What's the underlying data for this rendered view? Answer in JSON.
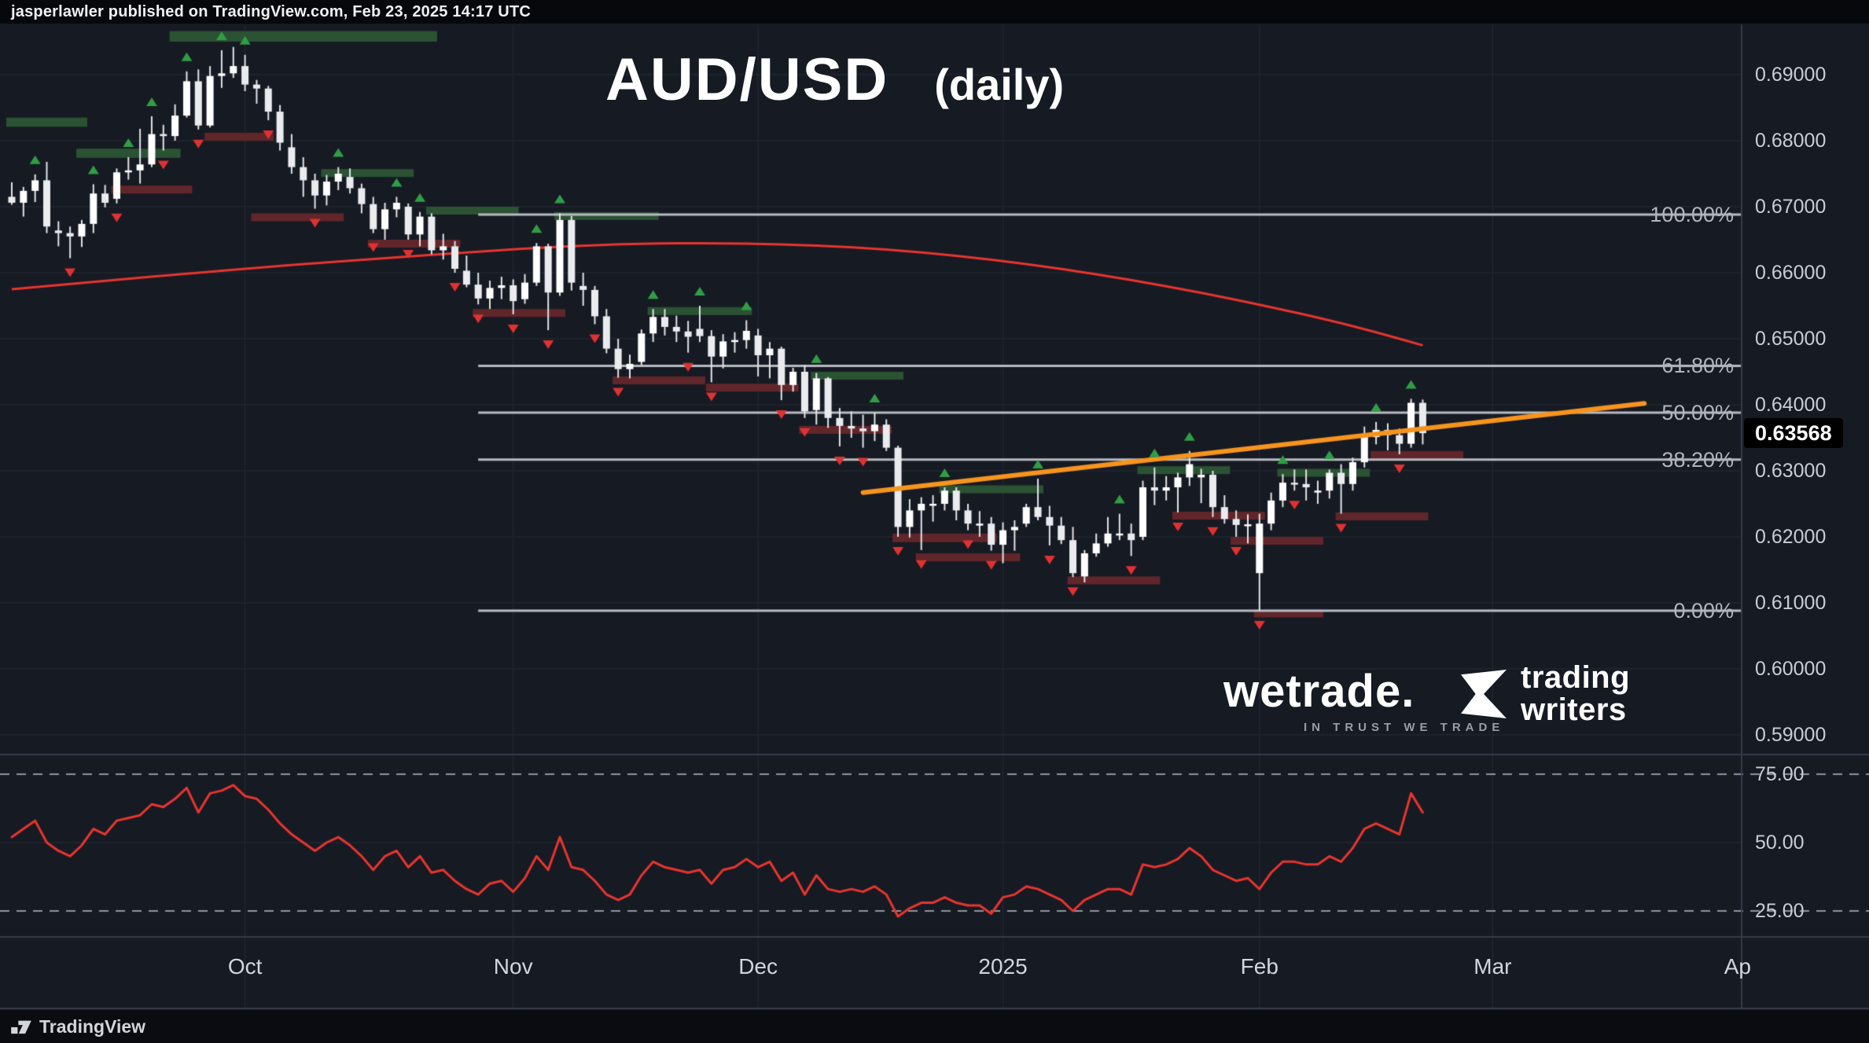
{
  "header": {
    "attribution": "jasperlawler published on TradingView.com, Feb 23, 2025 14:17 UTC"
  },
  "title": {
    "symbol": "AUD/USD",
    "timeframe": "(daily)"
  },
  "price_scale": {
    "last_price_label": "0.63568",
    "ticks": [
      {
        "label": "0.69000",
        "value": 0.69
      },
      {
        "label": "0.68000",
        "value": 0.68
      },
      {
        "label": "0.67000",
        "value": 0.67
      },
      {
        "label": "0.66000",
        "value": 0.66
      },
      {
        "label": "0.65000",
        "value": 0.65
      },
      {
        "label": "0.64000",
        "value": 0.64
      },
      {
        "label": "0.63000",
        "value": 0.63
      },
      {
        "label": "0.62000",
        "value": 0.62
      },
      {
        "label": "0.61000",
        "value": 0.61
      },
      {
        "label": "0.60000",
        "value": 0.6
      },
      {
        "label": "0.59000",
        "value": 0.59
      }
    ]
  },
  "rsi_scale": {
    "ticks": [
      {
        "label": "75.00",
        "value": 75
      },
      {
        "label": "50.00",
        "value": 50
      },
      {
        "label": "25.00",
        "value": 25
      }
    ]
  },
  "time_scale": {
    "ticks": [
      {
        "label": "Oct",
        "index": 20
      },
      {
        "label": "Nov",
        "index": 43
      },
      {
        "label": "Dec",
        "index": 64
      },
      {
        "label": "2025",
        "index": 85
      },
      {
        "label": "Feb",
        "index": 107
      },
      {
        "label": "Mar",
        "index": 127
      },
      {
        "label": "Ap",
        "index": 148
      }
    ]
  },
  "watermarks": {
    "wetrade": {
      "name": "wetrade.",
      "tagline": "IN TRUST WE TRADE"
    },
    "trading_writers": {
      "line1": "trading",
      "line2": "writers"
    }
  },
  "footer": {
    "brand": "TradingView"
  },
  "colors": {
    "background": "#161a23",
    "topbar_bg": "#07080c",
    "grid": "#212633",
    "separator": "#363b49",
    "candle_up": "#ffffff",
    "candle_down": "#e9ebef",
    "wick": "#e2e4e9",
    "ma_line": "#e8352e",
    "rsi_line": "#e8352e",
    "trendline": "#f7941d",
    "fib_line": "#b7bac1",
    "fib_label": "#b2b5be",
    "zone_green": "#2b5233",
    "zone_red": "#61262a",
    "arrow_up": "#2f9e44",
    "arrow_down": "#e03131",
    "dashed": "#9094a0",
    "axis_text": "#c9ccd3",
    "price_tag_bg": "#000000",
    "price_tag_text": "#ffffff"
  },
  "chart_data": {
    "type": "candlestick",
    "title": "AUD/USD",
    "interval": "daily",
    "last_price": 0.63568,
    "price_axis": {
      "min": 0.588,
      "max": 0.698,
      "tick_step": 0.01,
      "grid": true
    },
    "rsi_axis": {
      "min": 15,
      "max": 85,
      "overbought": 75,
      "midline": 50,
      "oversold": 25
    },
    "candles_ohlc": [
      [
        0.6715,
        0.6737,
        0.6703,
        0.6706
      ],
      [
        0.6706,
        0.673,
        0.6685,
        0.6724
      ],
      [
        0.6724,
        0.6749,
        0.6707,
        0.674
      ],
      [
        0.674,
        0.6768,
        0.666,
        0.667
      ],
      [
        0.6664,
        0.6678,
        0.664,
        0.666
      ],
      [
        0.666,
        0.667,
        0.6622,
        0.6655
      ],
      [
        0.6655,
        0.668,
        0.6639,
        0.6674
      ],
      [
        0.6674,
        0.6734,
        0.666,
        0.672
      ],
      [
        0.672,
        0.6733,
        0.6699,
        0.6706
      ],
      [
        0.6712,
        0.6758,
        0.6705,
        0.6752
      ],
      [
        0.6752,
        0.6775,
        0.6741,
        0.6755
      ],
      [
        0.6755,
        0.6818,
        0.6735,
        0.6764
      ],
      [
        0.6764,
        0.6837,
        0.676,
        0.681
      ],
      [
        0.681,
        0.6824,
        0.6785,
        0.6807
      ],
      [
        0.6807,
        0.6855,
        0.68,
        0.6838
      ],
      [
        0.6838,
        0.6905,
        0.6835,
        0.689
      ],
      [
        0.689,
        0.6908,
        0.6817,
        0.6823
      ],
      [
        0.6823,
        0.6913,
        0.682,
        0.6898
      ],
      [
        0.6898,
        0.6937,
        0.688,
        0.6902
      ],
      [
        0.6902,
        0.6942,
        0.6895,
        0.6913
      ],
      [
        0.6913,
        0.693,
        0.6875,
        0.6885
      ],
      [
        0.6885,
        0.6892,
        0.6856,
        0.6879
      ],
      [
        0.6879,
        0.6883,
        0.6831,
        0.6844
      ],
      [
        0.6844,
        0.6854,
        0.6785,
        0.6797
      ],
      [
        0.679,
        0.681,
        0.675,
        0.676
      ],
      [
        0.676,
        0.6775,
        0.6715,
        0.674
      ],
      [
        0.674,
        0.675,
        0.6697,
        0.6717
      ],
      [
        0.6717,
        0.6748,
        0.6702,
        0.6738
      ],
      [
        0.6738,
        0.676,
        0.6725,
        0.675
      ],
      [
        0.6745,
        0.6758,
        0.672,
        0.6728
      ],
      [
        0.6728,
        0.6735,
        0.669,
        0.6704
      ],
      [
        0.6704,
        0.6715,
        0.666,
        0.6666
      ],
      [
        0.6666,
        0.6706,
        0.665,
        0.6696
      ],
      [
        0.6696,
        0.6715,
        0.6684,
        0.6706
      ],
      [
        0.67,
        0.6705,
        0.665,
        0.6658
      ],
      [
        0.6658,
        0.6692,
        0.664,
        0.6685
      ],
      [
        0.6685,
        0.669,
        0.6628,
        0.6634
      ],
      [
        0.6634,
        0.6659,
        0.662,
        0.664
      ],
      [
        0.664,
        0.6648,
        0.66,
        0.6606
      ],
      [
        0.6603,
        0.6626,
        0.6578,
        0.6582
      ],
      [
        0.6582,
        0.66,
        0.6552,
        0.6561
      ],
      [
        0.6561,
        0.6588,
        0.6545,
        0.6577
      ],
      [
        0.6577,
        0.6594,
        0.656,
        0.6581
      ],
      [
        0.6581,
        0.659,
        0.6537,
        0.6557
      ],
      [
        0.656,
        0.6598,
        0.6553,
        0.6585
      ],
      [
        0.6585,
        0.6645,
        0.658,
        0.664
      ],
      [
        0.664,
        0.6644,
        0.6513,
        0.657
      ],
      [
        0.657,
        0.669,
        0.6565,
        0.668
      ],
      [
        0.668,
        0.6686,
        0.6573,
        0.6585
      ],
      [
        0.658,
        0.66,
        0.655,
        0.6574
      ],
      [
        0.6574,
        0.658,
        0.6522,
        0.6534
      ],
      [
        0.6534,
        0.6545,
        0.6478,
        0.6485
      ],
      [
        0.6485,
        0.65,
        0.6441,
        0.6454
      ],
      [
        0.6454,
        0.6476,
        0.644,
        0.6462
      ],
      [
        0.6465,
        0.6514,
        0.646,
        0.6508
      ],
      [
        0.6508,
        0.6545,
        0.6495,
        0.6533
      ],
      [
        0.6533,
        0.6545,
        0.6505,
        0.6518
      ],
      [
        0.6518,
        0.6535,
        0.6495,
        0.6511
      ],
      [
        0.6511,
        0.6527,
        0.6479,
        0.6503
      ],
      [
        0.6515,
        0.655,
        0.6495,
        0.6504
      ],
      [
        0.6504,
        0.6513,
        0.6434,
        0.6473
      ],
      [
        0.6473,
        0.6507,
        0.6455,
        0.6496
      ],
      [
        0.6496,
        0.651,
        0.6479,
        0.6498
      ],
      [
        0.6498,
        0.6528,
        0.6485,
        0.6512
      ],
      [
        0.6505,
        0.6515,
        0.6443,
        0.6475
      ],
      [
        0.6475,
        0.6495,
        0.644,
        0.6485
      ],
      [
        0.6485,
        0.6488,
        0.6407,
        0.643
      ],
      [
        0.643,
        0.6456,
        0.642,
        0.645
      ],
      [
        0.645,
        0.646,
        0.638,
        0.639
      ],
      [
        0.6392,
        0.6448,
        0.637,
        0.644
      ],
      [
        0.644,
        0.6442,
        0.6365,
        0.638
      ],
      [
        0.638,
        0.6395,
        0.6337,
        0.6368
      ],
      [
        0.6368,
        0.639,
        0.635,
        0.6364
      ],
      [
        0.6364,
        0.6385,
        0.6335,
        0.636
      ],
      [
        0.636,
        0.6388,
        0.6345,
        0.637
      ],
      [
        0.637,
        0.6378,
        0.633,
        0.6335
      ],
      [
        0.6335,
        0.6338,
        0.62,
        0.6215
      ],
      [
        0.6215,
        0.6257,
        0.6199,
        0.624
      ],
      [
        0.624,
        0.626,
        0.618,
        0.625
      ],
      [
        0.625,
        0.6263,
        0.6223,
        0.625
      ],
      [
        0.625,
        0.6275,
        0.624,
        0.627
      ],
      [
        0.627,
        0.6275,
        0.6225,
        0.624
      ],
      [
        0.624,
        0.625,
        0.621,
        0.622
      ],
      [
        0.622,
        0.6239,
        0.62,
        0.622
      ],
      [
        0.622,
        0.623,
        0.6179,
        0.6188
      ],
      [
        0.6188,
        0.6222,
        0.616,
        0.621
      ],
      [
        0.621,
        0.6225,
        0.6179,
        0.6215
      ],
      [
        0.622,
        0.625,
        0.6215,
        0.6245
      ],
      [
        0.6245,
        0.6288,
        0.6225,
        0.623
      ],
      [
        0.623,
        0.6247,
        0.6187,
        0.6217
      ],
      [
        0.6217,
        0.623,
        0.6189,
        0.6195
      ],
      [
        0.6195,
        0.6215,
        0.6139,
        0.6145
      ],
      [
        0.614,
        0.618,
        0.6131,
        0.6175
      ],
      [
        0.6175,
        0.6205,
        0.617,
        0.619
      ],
      [
        0.619,
        0.623,
        0.6185,
        0.6205
      ],
      [
        0.6205,
        0.6235,
        0.6195,
        0.6205
      ],
      [
        0.6205,
        0.622,
        0.6171,
        0.6195
      ],
      [
        0.62,
        0.6285,
        0.6195,
        0.6275
      ],
      [
        0.6275,
        0.6305,
        0.6248,
        0.627
      ],
      [
        0.627,
        0.6292,
        0.6255,
        0.6275
      ],
      [
        0.6275,
        0.6297,
        0.6237,
        0.629
      ],
      [
        0.629,
        0.633,
        0.6277,
        0.631
      ],
      [
        0.629,
        0.6303,
        0.6251,
        0.6294
      ],
      [
        0.6294,
        0.63,
        0.623,
        0.6245
      ],
      [
        0.6245,
        0.6263,
        0.622,
        0.6227
      ],
      [
        0.6227,
        0.624,
        0.62,
        0.6218
      ],
      [
        0.6218,
        0.6234,
        0.619,
        0.6219
      ],
      [
        0.6145,
        0.6235,
        0.6088,
        0.622
      ],
      [
        0.622,
        0.6267,
        0.621,
        0.6255
      ],
      [
        0.6255,
        0.6295,
        0.6245,
        0.6282
      ],
      [
        0.6282,
        0.6302,
        0.627,
        0.628
      ],
      [
        0.628,
        0.6302,
        0.6255,
        0.6275
      ],
      [
        0.627,
        0.6285,
        0.625,
        0.627
      ],
      [
        0.627,
        0.6302,
        0.6258,
        0.6297
      ],
      [
        0.6297,
        0.631,
        0.6235,
        0.628
      ],
      [
        0.628,
        0.632,
        0.627,
        0.6313
      ],
      [
        0.6313,
        0.6367,
        0.6305,
        0.6351
      ],
      [
        0.6351,
        0.6374,
        0.634,
        0.6362
      ],
      [
        0.6362,
        0.6372,
        0.6331,
        0.6354
      ],
      [
        0.6354,
        0.6364,
        0.6325,
        0.6341
      ],
      [
        0.6341,
        0.6409,
        0.6335,
        0.6403
      ],
      [
        0.6403,
        0.6408,
        0.634,
        0.6357
      ]
    ],
    "ma_line": {
      "points": [
        [
          0,
          0.6575
        ],
        [
          8,
          0.6588
        ],
        [
          16,
          0.66
        ],
        [
          24,
          0.6612
        ],
        [
          32,
          0.6622
        ],
        [
          40,
          0.6632
        ],
        [
          47,
          0.664
        ],
        [
          54,
          0.6644
        ],
        [
          60,
          0.6645
        ],
        [
          66,
          0.6643
        ],
        [
          72,
          0.6639
        ],
        [
          78,
          0.6631
        ],
        [
          84,
          0.662
        ],
        [
          90,
          0.6606
        ],
        [
          96,
          0.6589
        ],
        [
          102,
          0.657
        ],
        [
          108,
          0.6548
        ],
        [
          113,
          0.6528
        ],
        [
          117,
          0.651
        ],
        [
          121,
          0.649
        ]
      ]
    },
    "trendline": {
      "from_index": 73,
      "from_price": 0.6267,
      "to_index": 140,
      "to_price": 0.6402
    },
    "fractal_arrows": {
      "up": [
        2,
        7,
        10,
        12,
        15,
        18,
        20,
        28,
        33,
        35,
        45,
        47,
        55,
        59,
        63,
        69,
        74,
        80,
        88,
        95,
        98,
        101,
        109,
        113,
        117,
        120
      ],
      "down": [
        5,
        9,
        13,
        16,
        22,
        26,
        31,
        34,
        38,
        40,
        43,
        46,
        50,
        52,
        58,
        60,
        66,
        68,
        71,
        73,
        76,
        78,
        82,
        84,
        89,
        91,
        96,
        100,
        103,
        105,
        107,
        110,
        114,
        119
      ]
    },
    "zones": [
      [
        "green",
        0,
        6,
        0.6835,
        0.6821
      ],
      [
        "green",
        6,
        14,
        0.6788,
        0.6774
      ],
      [
        "red",
        9,
        15,
        0.6732,
        0.672
      ],
      [
        "green",
        14,
        36,
        0.6966,
        0.695
      ],
      [
        "red",
        17,
        22,
        0.6812,
        0.68
      ],
      [
        "red",
        21,
        28,
        0.669,
        0.6678
      ],
      [
        "green",
        27,
        34,
        0.6757,
        0.6745
      ],
      [
        "red",
        31,
        38,
        0.665,
        0.6638
      ],
      [
        "green",
        36,
        43,
        0.67,
        0.6688
      ],
      [
        "red",
        40,
        47,
        0.6545,
        0.6533
      ],
      [
        "green",
        47,
        55,
        0.6692,
        0.668
      ],
      [
        "red",
        52,
        59,
        0.6443,
        0.6431
      ],
      [
        "green",
        55,
        63,
        0.6548,
        0.6536
      ],
      [
        "red",
        60,
        67,
        0.6432,
        0.642
      ],
      [
        "green",
        69,
        76,
        0.645,
        0.6438
      ],
      [
        "red",
        68,
        75,
        0.6368,
        0.6356
      ],
      [
        "red",
        76,
        84,
        0.6205,
        0.6192
      ],
      [
        "red",
        78,
        86,
        0.6175,
        0.6163
      ],
      [
        "green",
        80,
        88,
        0.6278,
        0.6266
      ],
      [
        "red",
        91,
        98,
        0.614,
        0.6128
      ],
      [
        "green",
        97,
        104,
        0.6307,
        0.6295
      ],
      [
        "red",
        100,
        107,
        0.6238,
        0.6226
      ],
      [
        "red",
        105,
        112,
        0.62,
        0.6188
      ],
      [
        "red",
        107,
        112,
        0.609,
        0.6078
      ],
      [
        "green",
        109,
        116,
        0.6303,
        0.6291
      ],
      [
        "red",
        114,
        121,
        0.6237,
        0.6225
      ],
      [
        "red",
        117,
        124,
        0.633,
        0.6318
      ]
    ],
    "fib_retracement": {
      "start_index": 40,
      "levels": [
        {
          "label": "100.00%",
          "price": 0.6688
        },
        {
          "label": "61.80%",
          "price": 0.6459
        },
        {
          "label": "50.00%",
          "price": 0.6388
        },
        {
          "label": "38.20%",
          "price": 0.6317
        },
        {
          "label": "0.00%",
          "price": 0.6088
        }
      ]
    },
    "rsi": {
      "overbought": 75,
      "midline": 50,
      "oversold": 25,
      "values": [
        52,
        55,
        58,
        50,
        47,
        45,
        49,
        55,
        53,
        58,
        59,
        60,
        64,
        63,
        66,
        70,
        61,
        68,
        69,
        71,
        67,
        66,
        62,
        57,
        53,
        50,
        47,
        50,
        52,
        49,
        45,
        40,
        45,
        47,
        41,
        45,
        39,
        40,
        36,
        33,
        31,
        35,
        36,
        32,
        37,
        45,
        40,
        52,
        41,
        40,
        36,
        31,
        29,
        31,
        38,
        43,
        41,
        40,
        39,
        40,
        35,
        40,
        41,
        44,
        41,
        43,
        36,
        39,
        31,
        38,
        33,
        32,
        33,
        32,
        34,
        31,
        23,
        26,
        28,
        28,
        30,
        28,
        27,
        27,
        24,
        30,
        31,
        34,
        33,
        31,
        29,
        25,
        29,
        31,
        33,
        33,
        31,
        42,
        41,
        42,
        44,
        48,
        45,
        40,
        38,
        36,
        37,
        33,
        39,
        43,
        43,
        42,
        42,
        45,
        43,
        48,
        55,
        57,
        55,
        53,
        68,
        61
      ]
    }
  }
}
